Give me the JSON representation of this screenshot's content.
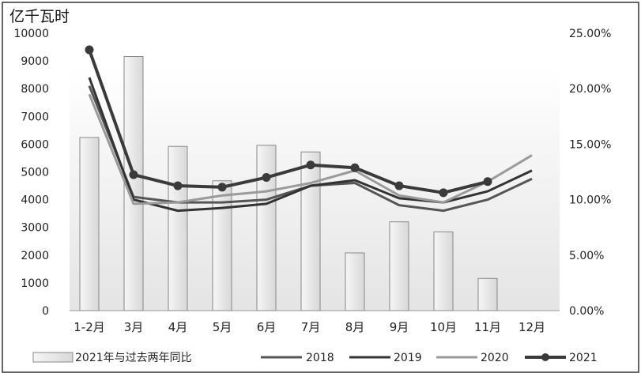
{
  "chart_data": {
    "type": "bar",
    "title": "",
    "left_axis_unit": "亿千瓦时",
    "categories": [
      "1-2月",
      "3月",
      "4月",
      "5月",
      "6月",
      "7月",
      "8月",
      "9月",
      "10月",
      "11月",
      "12月"
    ],
    "ylim_left": [
      0,
      10000
    ],
    "left_ticks": [
      "0",
      "1000",
      "2000",
      "3000",
      "4000",
      "5000",
      "6000",
      "7000",
      "8000",
      "9000",
      "10000"
    ],
    "ylim_right": [
      0,
      25
    ],
    "right_ticks": [
      "0.00%",
      "5.00%",
      "10.00%",
      "15.00%",
      "20.00%",
      "25.00%"
    ],
    "bar_series": {
      "name": "2021年与过去两年同比",
      "axis": "right",
      "values": [
        15.6,
        22.9,
        14.8,
        11.7,
        14.9,
        14.3,
        5.2,
        8.0,
        7.1,
        2.9,
        null
      ]
    },
    "line_series": [
      {
        "name": "2018",
        "color": "#555555",
        "values": [
          8100,
          4100,
          3900,
          3900,
          4000,
          4500,
          4600,
          3800,
          3600,
          4000,
          4750
        ]
      },
      {
        "name": "2019",
        "color": "#333333",
        "values": [
          8400,
          4000,
          3600,
          3700,
          3850,
          4500,
          4700,
          4050,
          3900,
          4300,
          5050
        ]
      },
      {
        "name": "2020",
        "color": "#9a9a9a",
        "values": [
          7800,
          3850,
          3900,
          4150,
          4300,
          4600,
          5050,
          4150,
          3900,
          4650,
          5600
        ]
      },
      {
        "name": "2021",
        "color": "#3a3a3a",
        "values": [
          9400,
          4900,
          4500,
          4450,
          4800,
          5250,
          5150,
          4500,
          4250,
          4650,
          null
        ]
      }
    ],
    "legend_position": "bottom",
    "grid": false
  }
}
